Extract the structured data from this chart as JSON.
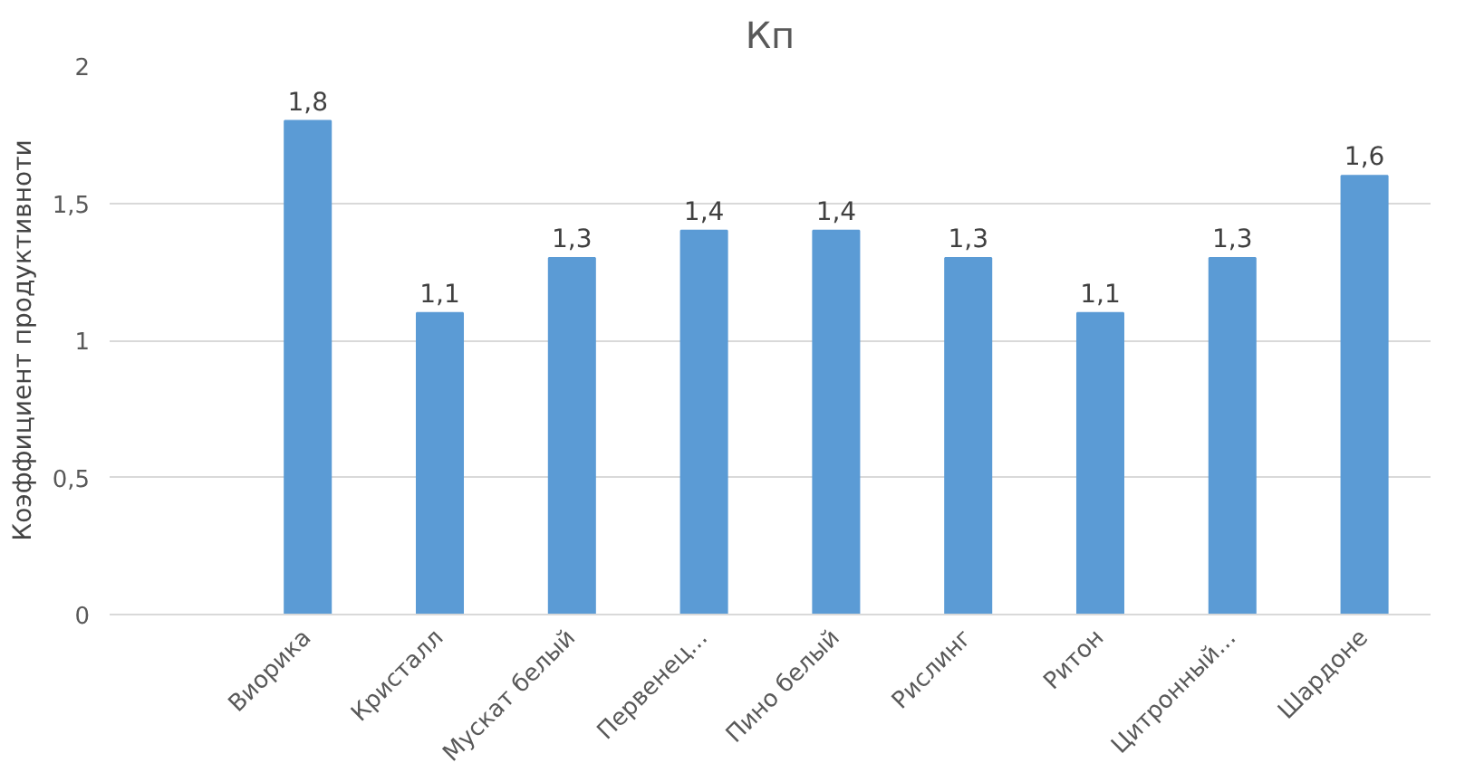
{
  "chart_data": {
    "type": "bar",
    "title": "Кп",
    "ylabel": "Коэффициент продуктивноти",
    "categories": [
      null,
      "Виорика",
      "Кристалл",
      "Мускат белый",
      "Первенец...",
      "Пино белый",
      "Рислинг",
      "Ритон",
      "Цитронный...",
      "Шардоне"
    ],
    "values": [
      null,
      1.8,
      1.1,
      1.3,
      1.4,
      1.4,
      1.3,
      1.1,
      1.3,
      1.6
    ],
    "value_labels": [
      null,
      "1,8",
      "1,1",
      "1,3",
      "1,4",
      "1,4",
      "1,3",
      "1,1",
      "1,3",
      "1,6"
    ],
    "color": "#5b9bd5",
    "ylim": [
      0,
      2
    ],
    "yticks": [
      0,
      {
        "value": 0.5,
        "label": "0,5"
      },
      1,
      {
        "value": 1.5,
        "label": "1,5"
      },
      2
    ],
    "grid": "y"
  }
}
